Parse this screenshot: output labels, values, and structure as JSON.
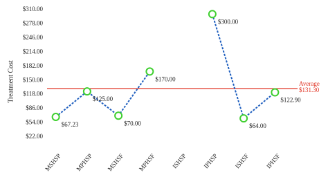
{
  "chart_data": {
    "type": "line",
    "y_label": "Treatment Cost",
    "categories": [
      "MSHSP",
      "MPHSP",
      "MSHSF",
      "MPHSF",
      "ISHSP",
      "IPHSP",
      "ISHSF",
      "IPHSF"
    ],
    "series": [
      {
        "color": "#1f5fbf",
        "marker_color": "#3ecf2e",
        "values": [
          67.23,
          125.0,
          70.0,
          170.0,
          null,
          300.0,
          64.0,
          122.9
        ],
        "value_labels": [
          "$67.23",
          "$125.00",
          "$70.00",
          "$170.00",
          null,
          "$300.00",
          "$64.00",
          "$122.90"
        ]
      }
    ],
    "average": {
      "label": "Average",
      "value": 131.3,
      "value_label": "$131.30",
      "color": "#e03020"
    },
    "ylim": [
      0,
      310
    ],
    "yticks": [
      {
        "value": 22,
        "label": "$22.00"
      },
      {
        "value": 54,
        "label": "$54.00"
      },
      {
        "value": 86,
        "label": "$86.00"
      },
      {
        "value": 118,
        "label": "$118.00"
      },
      {
        "value": 150,
        "label": "$150.00"
      },
      {
        "value": 182,
        "label": "$182.00"
      },
      {
        "value": 214,
        "label": "$214.00"
      },
      {
        "value": 246,
        "label": "$246.00"
      },
      {
        "value": 278,
        "label": "$278.00"
      },
      {
        "value": 310,
        "label": "$310.00"
      }
    ],
    "grid": false
  }
}
